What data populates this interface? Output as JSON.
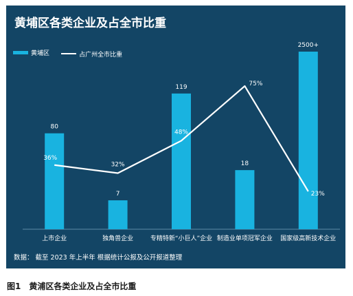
{
  "chart_data": {
    "type": "bar",
    "title": "黄埔区各类企业及占全市比重",
    "categories": [
      "上市企业",
      "独角兽企业",
      "专精特新“小巨人”企业",
      "制造业单项冠军企业",
      "国家级高新技术企业"
    ],
    "series": [
      {
        "name": "黄埔区",
        "type": "bar",
        "values": [
          80,
          7,
          119,
          18,
          2500
        ],
        "labels": [
          "80",
          "7",
          "119",
          "18",
          "2500+"
        ],
        "color": "#19b3e0"
      },
      {
        "name": "占广州全市比重",
        "type": "line",
        "values": [
          36,
          32,
          48,
          75,
          23
        ],
        "labels": [
          "36%",
          "32%",
          "48%",
          "75%",
          "23%"
        ],
        "unit": "%",
        "color": "#ffffff"
      }
    ],
    "legend_position": "top-left",
    "grid": false
  },
  "source_note": "数据： 截至 2023 年上半年 根据统计公报及公开报道整理",
  "caption": "图1　黄浦区各类企业及占全市比重",
  "colors": {
    "panel_background": "#134565",
    "bar": "#19b3e0",
    "line": "#ffffff",
    "text": "#ffffff"
  }
}
